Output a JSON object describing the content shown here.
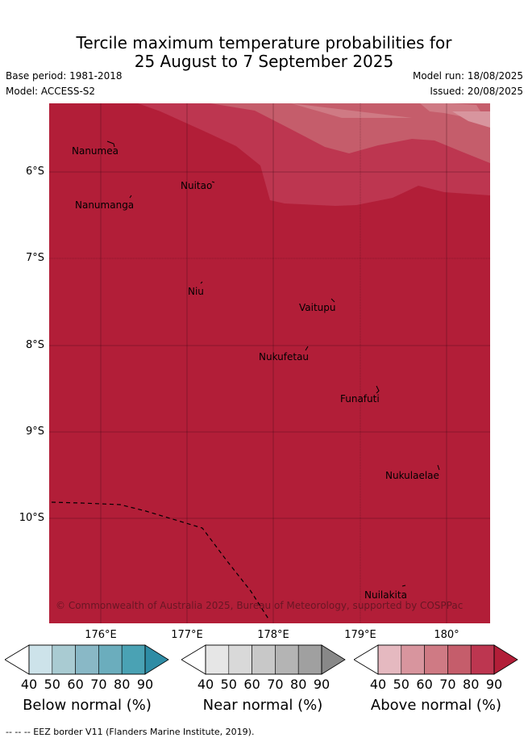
{
  "title_line1": "Tercile maximum temperature probabilities for",
  "title_line2": "25 August to 7 September 2025",
  "base_period": "Base period: 1981-2018",
  "model": "Model: ACCESS-S2",
  "model_run": "Model run: 18/08/2025",
  "issued": "Issued: 20/08/2025",
  "lat_labels": [
    "6°S",
    "7°S",
    "8°S",
    "9°S",
    "10°S"
  ],
  "lon_labels": [
    "176°E",
    "177°E",
    "178°E",
    "179°E",
    "180°"
  ],
  "islands": {
    "nanumea": "Nanumea",
    "nuitao": "Nuitao",
    "nanumanga": "Nanumanga",
    "niu": "Niu",
    "vaitupu": "Vaitupu",
    "nukufetau": "Nukufetau",
    "funafuti": "Funafuti",
    "nukulaelae": "Nukulaelae",
    "nuilakita": "Nuilakita"
  },
  "copyright": "© Commonwealth of Australia 2025, Bureau of Meteorology, supported by COSPPac",
  "colorbars": [
    {
      "label": "Below normal (%)",
      "ticks": [
        "40",
        "50",
        "60",
        "70",
        "80",
        "90"
      ],
      "colors": [
        "#cde3ea",
        "#a9cbd2",
        "#89b8c6",
        "#6badbd",
        "#4aa2b4",
        "#2e8ca5"
      ]
    },
    {
      "label": "Near normal (%)",
      "ticks": [
        "40",
        "50",
        "60",
        "70",
        "80",
        "90"
      ],
      "colors": [
        "#e6e6e6",
        "#d9d9d9",
        "#c8c8c8",
        "#b4b4b4",
        "#a0a0a0",
        "#888888"
      ]
    },
    {
      "label": "Above normal (%)",
      "ticks": [
        "40",
        "50",
        "60",
        "70",
        "80",
        "90"
      ],
      "colors": [
        "#e5b9c0",
        "#d8959e",
        "#cf7a84",
        "#c55d6b",
        "#bd3650",
        "#b21e38"
      ]
    }
  ],
  "footer": "--  --  -- EEZ border V11 (Flanders Marine Institute, 2019)."
}
